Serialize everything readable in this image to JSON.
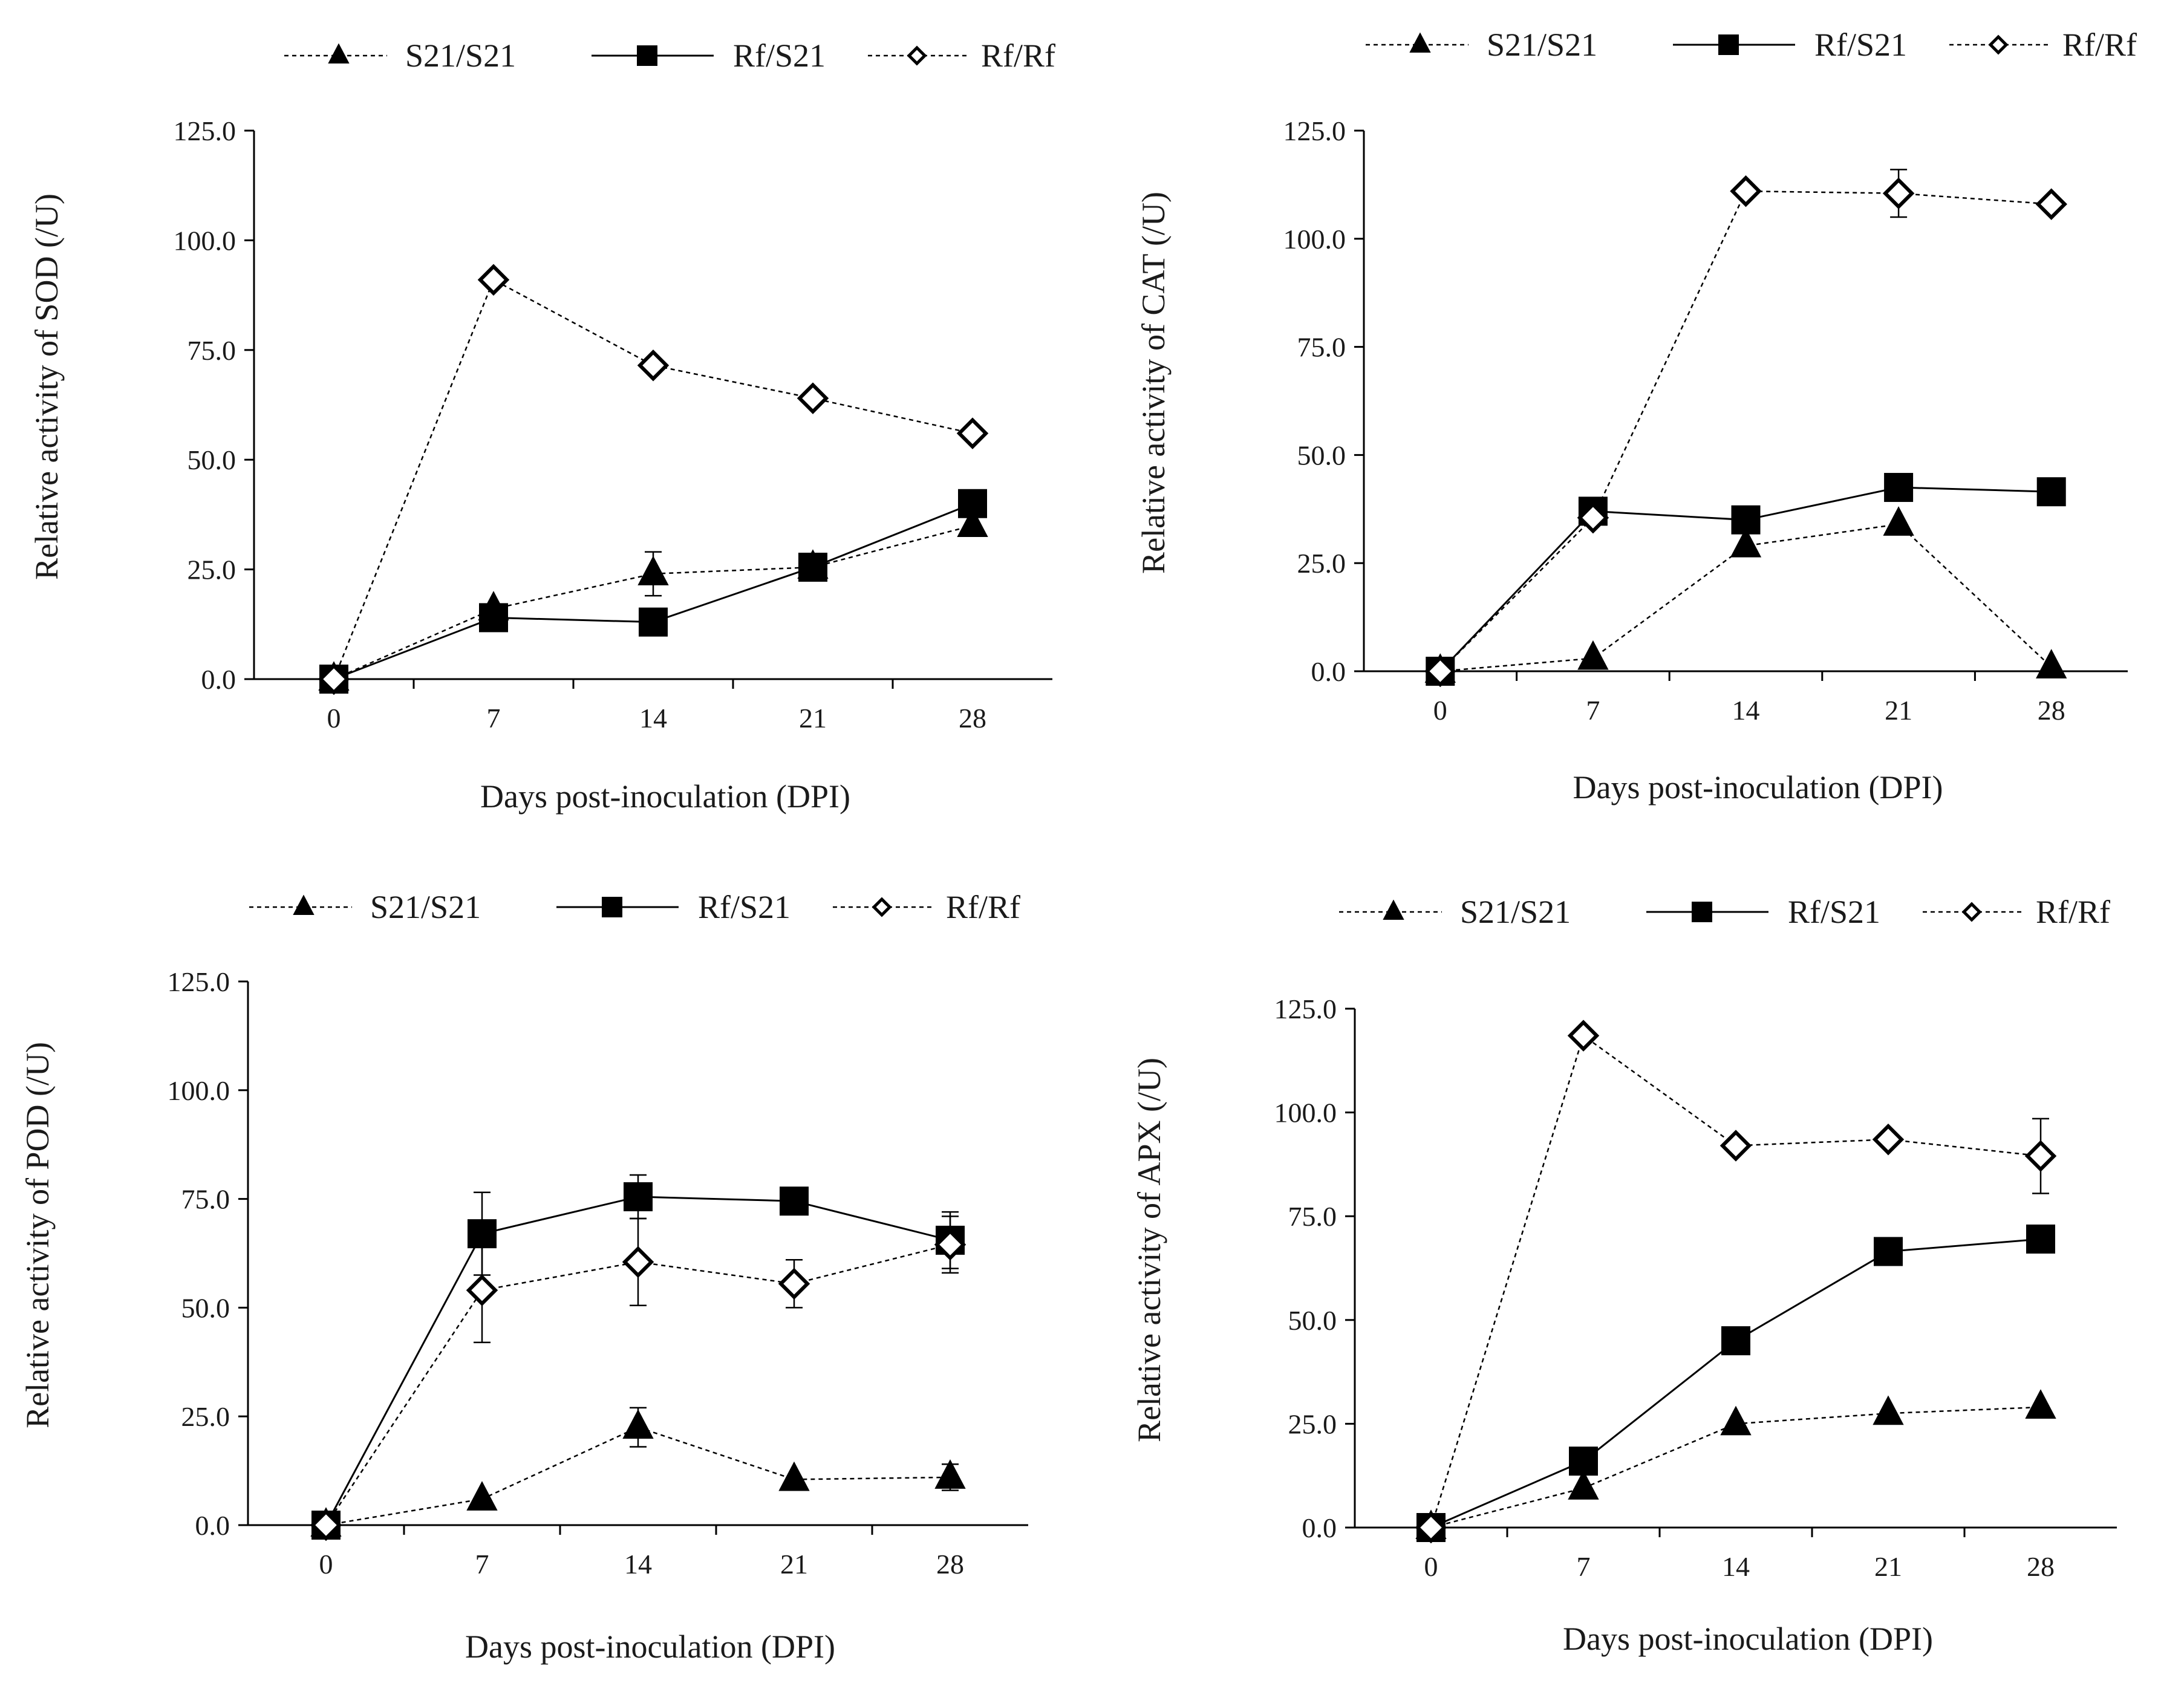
{
  "figure": {
    "x_tick_labels": [
      "0",
      "7",
      "14",
      "21",
      "28"
    ],
    "y_tick_labels": [
      "0.0",
      "25.0",
      "50.0",
      "75.0",
      "100.0",
      "125.0"
    ]
  },
  "chart_data": [
    {
      "type": "line",
      "title": "",
      "xlabel": "Days post-inoculation (DPI)",
      "ylabel": "Relative activity of SOD (/U)",
      "x": [
        0,
        7,
        14,
        21,
        28
      ],
      "ylim": [
        0,
        125
      ],
      "legend_position": "top",
      "series": [
        {
          "name": "S21/S21",
          "marker": "triangle",
          "line": "dashed",
          "values": [
            0.0,
            16.0,
            24.0,
            25.5,
            35.0
          ],
          "errors": [
            0,
            0,
            5.0,
            0,
            0
          ]
        },
        {
          "name": "Rf/S21",
          "marker": "square",
          "line": "solid",
          "values": [
            0.0,
            14.0,
            13.0,
            25.5,
            40.0
          ],
          "errors": [
            0,
            0,
            0,
            0,
            0
          ]
        },
        {
          "name": "Rf/Rf",
          "marker": "diamond-open",
          "line": "dashed",
          "values": [
            0.0,
            91.0,
            71.5,
            64.0,
            56.0
          ],
          "errors": [
            0,
            0,
            0,
            0,
            0
          ]
        }
      ]
    },
    {
      "type": "line",
      "title": "",
      "xlabel": "Days post-inoculation (DPI)",
      "ylabel": "Relative activity of CAT (/U)",
      "x": [
        0,
        7,
        14,
        21,
        28
      ],
      "ylim": [
        0,
        125
      ],
      "legend_position": "top",
      "series": [
        {
          "name": "S21/S21",
          "marker": "triangle",
          "line": "dashed",
          "values": [
            0.0,
            3.0,
            29.0,
            34.0,
            1.0
          ],
          "errors": [
            0,
            0,
            0,
            0,
            0
          ]
        },
        {
          "name": "Rf/S21",
          "marker": "square",
          "line": "solid",
          "values": [
            0.0,
            37.0,
            35.0,
            42.5,
            41.5
          ],
          "errors": [
            0,
            0,
            0,
            0,
            0
          ]
        },
        {
          "name": "Rf/Rf",
          "marker": "diamond-open",
          "line": "dashed",
          "values": [
            0.0,
            35.5,
            111.0,
            110.5,
            108.0
          ],
          "errors": [
            0,
            0,
            0,
            5.5,
            0
          ]
        }
      ]
    },
    {
      "type": "line",
      "title": "",
      "xlabel": "Days post-inoculation (DPI)",
      "ylabel": "Relative activity of POD (/U)",
      "x": [
        0,
        7,
        14,
        21,
        28
      ],
      "ylim": [
        0,
        125
      ],
      "legend_position": "top",
      "series": [
        {
          "name": "S21/S21",
          "marker": "triangle",
          "line": "dashed",
          "values": [
            0.0,
            6.0,
            22.5,
            10.5,
            11.0
          ],
          "errors": [
            0,
            0,
            4.5,
            0,
            3.0
          ]
        },
        {
          "name": "Rf/S21",
          "marker": "square",
          "line": "solid",
          "values": [
            0.0,
            67.0,
            75.5,
            74.5,
            65.5
          ],
          "errors": [
            0,
            9.5,
            5.0,
            0,
            6.5
          ]
        },
        {
          "name": "Rf/Rf",
          "marker": "diamond-open",
          "line": "dashed",
          "values": [
            0.0,
            54.0,
            60.5,
            55.5,
            64.5
          ],
          "errors": [
            0,
            12.0,
            10.0,
            5.5,
            6.5
          ]
        }
      ]
    },
    {
      "type": "line",
      "title": "",
      "xlabel": "Days post-inoculation (DPI)",
      "ylabel": "Relative activity of APX (/U)",
      "x": [
        0,
        7,
        14,
        21,
        28
      ],
      "ylim": [
        0,
        125
      ],
      "legend_position": "top",
      "series": [
        {
          "name": "S21/S21",
          "marker": "triangle",
          "line": "dashed",
          "values": [
            0.0,
            9.5,
            25.0,
            27.5,
            29.0
          ],
          "errors": [
            0,
            0,
            0,
            0,
            0
          ]
        },
        {
          "name": "Rf/S21",
          "marker": "square",
          "line": "solid",
          "values": [
            0.0,
            16.0,
            45.0,
            66.5,
            69.5
          ],
          "errors": [
            0,
            0,
            0,
            0,
            0
          ]
        },
        {
          "name": "Rf/Rf",
          "marker": "diamond-open",
          "line": "dashed",
          "values": [
            0.0,
            118.5,
            92.0,
            93.5,
            89.5
          ],
          "errors": [
            0,
            0,
            0,
            0,
            9.0
          ]
        }
      ]
    }
  ]
}
